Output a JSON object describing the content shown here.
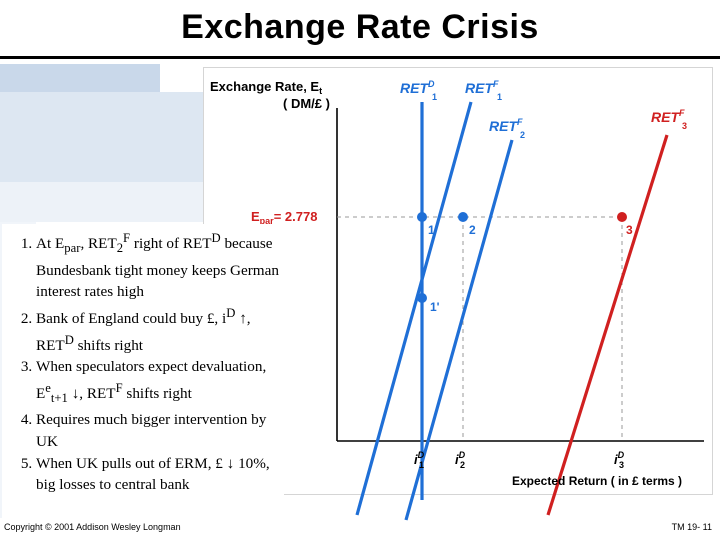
{
  "slide": {
    "title": "Exchange Rate Crisis",
    "copyright": "Copyright © 2001 Addison Wesley Longman",
    "page_label": "TM 19- 11"
  },
  "diagram": {
    "y_axis_label": "Exchange Rate, E",
    "y_axis_label_sub": "t",
    "y_axis_unit": "( DM/£ )",
    "x_axis_label": "Expected Return ( in £ terms )",
    "epar_label": "E",
    "epar_label_sub": "par",
    "epar_value": "= 2.778",
    "curves": {
      "ret_d": {
        "label": "RET",
        "sup": "D",
        "sub": "1"
      },
      "ret_f1": {
        "label": "RET",
        "sup": "F",
        "sub": "1"
      },
      "ret_f2": {
        "label": "RET",
        "sup": "F",
        "sub": "2"
      },
      "ret_f3": {
        "label": "RET",
        "sup": "F",
        "sub": "3"
      }
    },
    "points": {
      "p1": "1",
      "p2": "2",
      "p3": "3",
      "p1prime": "1'"
    },
    "x_ticks": {
      "i1": {
        "label": "i",
        "sup": "D",
        "sub": "1"
      },
      "i2": {
        "label": "i",
        "sup": "D",
        "sub": "2"
      },
      "i3": {
        "label": "i",
        "sup": "D",
        "sub": "3"
      }
    },
    "colors": {
      "blue": "#1f6fd6",
      "red": "#d02020",
      "epar_red": "#d02020",
      "accent_label": "#1f6fd6"
    }
  },
  "notes": {
    "n1": {
      "a": "At E",
      "a_sub": "par",
      "b": ", RET",
      "b_sub": "2",
      "b_sup": "F",
      "c": " right of RET",
      "c_sup": "D",
      "d": " because Bundesbank tight money keeps German interest rates high"
    },
    "n2": {
      "a": "Bank of England could buy £, i",
      "a_sup": "D",
      "b": " ↑, RET",
      "b_sup": "D",
      "c": " shifts right"
    },
    "n3": {
      "a": "When speculators expect devaluation, E",
      "a_sup": "e",
      "a_sub": "t+1",
      "b": " ↓, RET",
      "b_sup": "F",
      "c": " shifts right"
    },
    "n4": {
      "a": "Requires much bigger intervention by UK"
    },
    "n5": {
      "a": "When UK pulls out of ERM, £ ↓ 10%, big losses to central bank"
    }
  }
}
